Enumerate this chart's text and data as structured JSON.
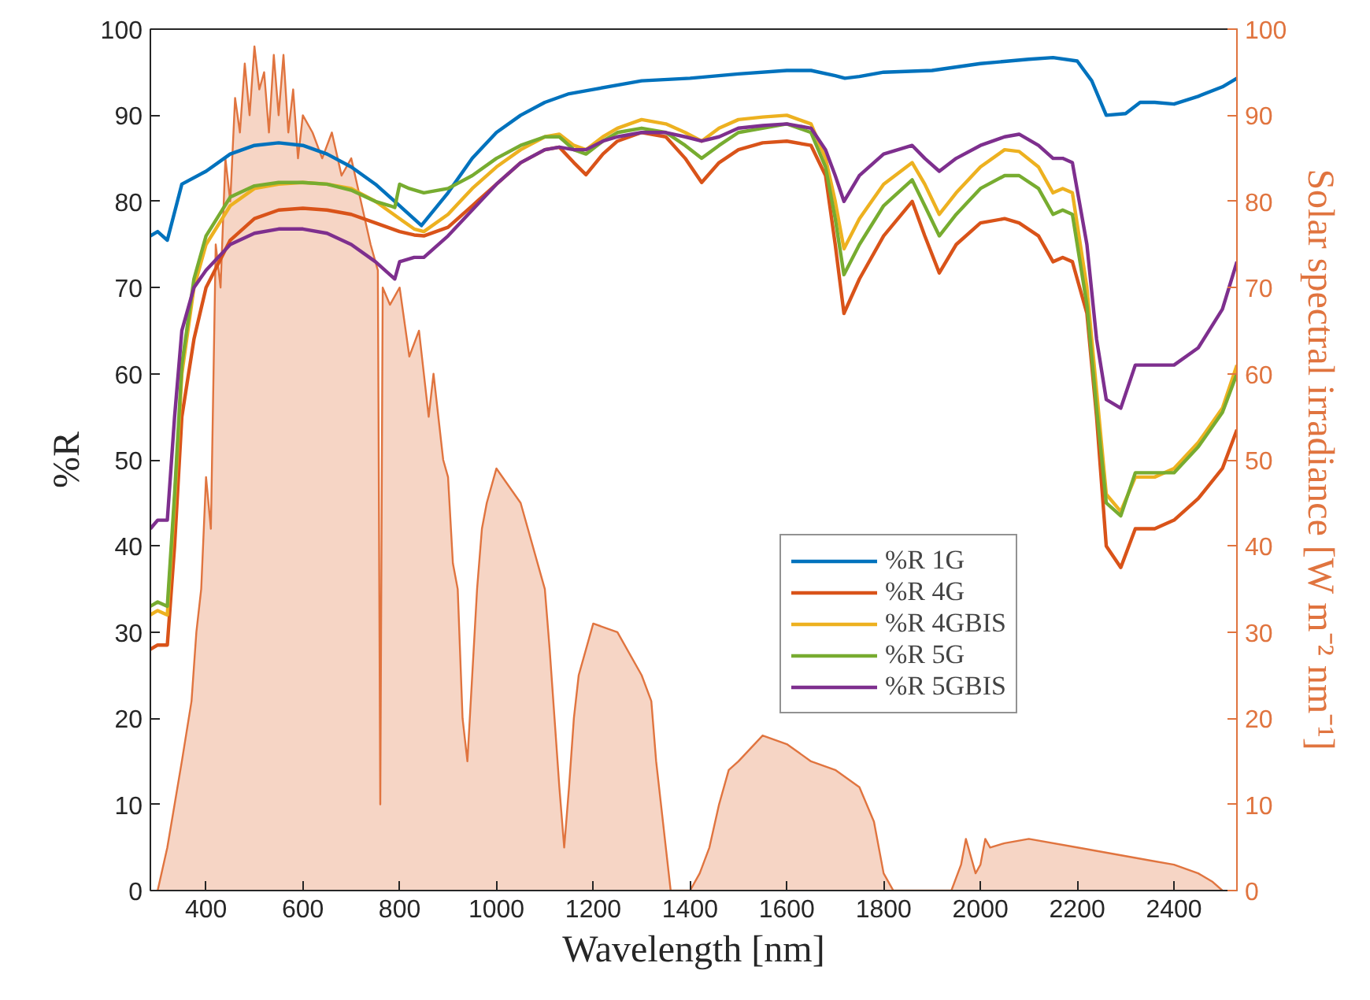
{
  "chart_data": {
    "type": "line",
    "xlabel": "Wavelength [nm]",
    "ylabel": "%R",
    "y2label": "Solar spectral irradiance [W m⁻² nm⁻¹]",
    "xlim": [
      285,
      2530
    ],
    "ylim": [
      0,
      100
    ],
    "y2lim": [
      0,
      100
    ],
    "xticks": [
      400,
      600,
      800,
      1000,
      1200,
      1400,
      1600,
      1800,
      2000,
      2200,
      2400
    ],
    "yticks": [
      0,
      10,
      20,
      30,
      40,
      50,
      60,
      70,
      80,
      90,
      100
    ],
    "y2ticks": [
      0,
      10,
      20,
      30,
      40,
      50,
      60,
      70,
      80,
      90,
      100
    ],
    "legend": "center",
    "series": [
      {
        "type": "area",
        "axis": "y2",
        "color": "#e0743f",
        "x": [
          300,
          320,
          350,
          370,
          380,
          390,
          400,
          410,
          420,
          430,
          440,
          450,
          460,
          470,
          480,
          490,
          500,
          510,
          520,
          530,
          540,
          550,
          560,
          570,
          580,
          590,
          600,
          620,
          640,
          660,
          680,
          700,
          720,
          740,
          755,
          760,
          765,
          780,
          800,
          820,
          840,
          860,
          870,
          890,
          900,
          910,
          920,
          930,
          940,
          950,
          960,
          970,
          980,
          1000,
          1050,
          1100,
          1110,
          1120,
          1130,
          1140,
          1150,
          1160,
          1170,
          1200,
          1250,
          1300,
          1320,
          1330,
          1350,
          1360,
          1400,
          1420,
          1440,
          1460,
          1480,
          1500,
          1550,
          1600,
          1650,
          1700,
          1750,
          1780,
          1800,
          1820,
          1940,
          1960,
          1970,
          1980,
          1990,
          2000,
          2010,
          2020,
          2050,
          2100,
          2200,
          2300,
          2350,
          2400,
          2450,
          2480,
          2500
        ],
        "values": [
          0,
          5,
          15,
          22,
          30,
          35,
          48,
          42,
          75,
          70,
          85,
          80,
          92,
          88,
          96,
          90,
          98,
          93,
          95,
          88,
          97,
          90,
          97,
          88,
          93,
          85,
          90,
          88,
          85,
          88,
          83,
          85,
          80,
          75,
          72,
          10,
          70,
          68,
          70,
          62,
          65,
          55,
          60,
          50,
          48,
          38,
          35,
          20,
          15,
          25,
          35,
          42,
          45,
          49,
          45,
          35,
          28,
          20,
          12,
          5,
          12,
          20,
          25,
          31,
          30,
          25,
          22,
          15,
          5,
          0,
          0,
          2,
          5,
          10,
          14,
          15,
          18,
          17,
          15,
          14,
          12,
          8,
          2,
          0,
          0,
          3,
          6,
          4,
          2,
          3,
          6,
          5,
          5.5,
          6,
          5,
          4,
          3.5,
          3,
          2,
          1,
          0
        ]
      },
      {
        "name": "%R 1G",
        "color": "#0072bd",
        "x": [
          285,
          300,
          320,
          350,
          400,
          450,
          500,
          550,
          600,
          650,
          700,
          750,
          800,
          845,
          900,
          950,
          1000,
          1050,
          1100,
          1150,
          1200,
          1300,
          1400,
          1500,
          1600,
          1650,
          1700,
          1720,
          1750,
          1800,
          1900,
          2000,
          2100,
          2150,
          2200,
          2230,
          2260,
          2300,
          2330,
          2360,
          2400,
          2450,
          2500,
          2530
        ],
        "values": [
          76,
          76.5,
          75.5,
          82,
          83.5,
          85.5,
          86.5,
          86.8,
          86.5,
          85.5,
          84,
          82,
          79.5,
          77.2,
          81,
          85,
          88,
          90,
          91.5,
          92.5,
          93,
          94,
          94.3,
          94.8,
          95.2,
          95.2,
          94.6,
          94.3,
          94.5,
          95,
          95.2,
          96,
          96.5,
          96.7,
          96.3,
          94,
          90,
          90.2,
          91.5,
          91.5,
          91.3,
          92.2,
          93.3,
          94.3
        ]
      },
      {
        "name": "%R 4G",
        "color": "#d95319",
        "x": [
          285,
          300,
          320,
          335,
          350,
          375,
          400,
          450,
          500,
          550,
          600,
          650,
          700,
          750,
          800,
          830,
          850,
          900,
          950,
          1000,
          1050,
          1100,
          1130,
          1160,
          1185,
          1220,
          1250,
          1300,
          1350,
          1390,
          1424,
          1460,
          1500,
          1550,
          1600,
          1650,
          1680,
          1700,
          1718,
          1750,
          1800,
          1859,
          1885,
          1915,
          1950,
          2000,
          2050,
          2080,
          2120,
          2150,
          2170,
          2190,
          2220,
          2240,
          2260,
          2290,
          2320,
          2360,
          2400,
          2450,
          2500,
          2530
        ],
        "values": [
          28,
          28.5,
          28.5,
          40,
          55,
          64,
          70,
          75.5,
          78,
          79,
          79.2,
          79,
          78.5,
          77.5,
          76.5,
          76.1,
          76,
          77,
          79.5,
          82,
          84.5,
          86,
          86.3,
          84.5,
          83.1,
          85.5,
          87,
          88,
          87.5,
          85,
          82.2,
          84.5,
          86,
          86.8,
          87,
          86.5,
          83,
          75,
          67,
          71,
          76,
          80,
          76,
          71.7,
          75,
          77.5,
          78,
          77.5,
          76,
          73,
          73.5,
          73,
          67,
          55,
          40,
          37.5,
          42,
          42,
          43,
          45.5,
          49,
          53.5
        ]
      },
      {
        "name": "%R 4GBIS",
        "color": "#edb120",
        "x": [
          285,
          300,
          320,
          335,
          350,
          375,
          400,
          450,
          500,
          550,
          600,
          650,
          700,
          750,
          800,
          830,
          850,
          900,
          950,
          1000,
          1050,
          1100,
          1130,
          1160,
          1185,
          1220,
          1250,
          1300,
          1350,
          1390,
          1424,
          1460,
          1500,
          1550,
          1600,
          1650,
          1680,
          1700,
          1718,
          1750,
          1800,
          1859,
          1885,
          1915,
          1950,
          2000,
          2050,
          2080,
          2120,
          2150,
          2170,
          2190,
          2220,
          2240,
          2260,
          2290,
          2320,
          2360,
          2400,
          2450,
          2500,
          2530
        ],
        "values": [
          32,
          32.5,
          32,
          45,
          60,
          70,
          75,
          79.5,
          81.5,
          82,
          82.2,
          82,
          81.5,
          80,
          78,
          76.8,
          76.5,
          78.5,
          81.5,
          84,
          86,
          87.5,
          87.8,
          86.5,
          86,
          87.5,
          88.5,
          89.5,
          89,
          88,
          87,
          88.5,
          89.5,
          89.8,
          90,
          89,
          85,
          80,
          74.5,
          78,
          82,
          84.5,
          82,
          78.5,
          81,
          84,
          86,
          85.8,
          84,
          81,
          81.5,
          81,
          70,
          58,
          46,
          44,
          48,
          48,
          49,
          52,
          56,
          61
        ]
      },
      {
        "name": "%R 5G",
        "color": "#77ac30",
        "x": [
          285,
          300,
          320,
          335,
          350,
          375,
          400,
          450,
          500,
          550,
          600,
          650,
          700,
          750,
          780,
          790,
          800,
          820,
          850,
          900,
          950,
          1000,
          1050,
          1100,
          1130,
          1160,
          1185,
          1220,
          1250,
          1300,
          1350,
          1390,
          1424,
          1460,
          1500,
          1550,
          1600,
          1650,
          1680,
          1700,
          1718,
          1750,
          1800,
          1859,
          1885,
          1915,
          1950,
          2000,
          2050,
          2080,
          2120,
          2150,
          2170,
          2190,
          2220,
          2240,
          2260,
          2290,
          2320,
          2360,
          2400,
          2450,
          2500,
          2530
        ],
        "values": [
          33,
          33.5,
          33,
          46,
          61,
          71,
          76,
          80.5,
          81.8,
          82.2,
          82.2,
          82,
          81.3,
          80,
          79.5,
          79.3,
          82,
          81.5,
          81,
          81.5,
          83,
          85,
          86.5,
          87.5,
          87.5,
          86,
          85.5,
          87,
          88,
          88.5,
          88,
          86.5,
          85,
          86.5,
          88,
          88.5,
          89,
          88,
          84,
          78,
          71.5,
          75,
          79.5,
          82.5,
          79.5,
          76,
          78.5,
          81.5,
          83,
          83,
          81.5,
          78.5,
          79,
          78.5,
          68,
          56,
          45,
          43.5,
          48.5,
          48.5,
          48.5,
          51.5,
          55.5,
          60
        ]
      },
      {
        "name": "%R 5GBIS",
        "color": "#7e2f8e",
        "x": [
          285,
          300,
          320,
          335,
          350,
          375,
          400,
          450,
          500,
          550,
          600,
          650,
          700,
          750,
          780,
          790,
          800,
          830,
          850,
          900,
          950,
          1000,
          1050,
          1100,
          1130,
          1160,
          1185,
          1220,
          1250,
          1300,
          1350,
          1390,
          1424,
          1460,
          1500,
          1550,
          1600,
          1650,
          1680,
          1700,
          1718,
          1750,
          1800,
          1859,
          1885,
          1915,
          1950,
          2000,
          2050,
          2080,
          2120,
          2150,
          2170,
          2190,
          2220,
          2240,
          2260,
          2290,
          2320,
          2360,
          2400,
          2450,
          2500,
          2530
        ],
        "values": [
          42,
          43,
          43,
          55,
          65,
          70,
          72,
          75,
          76.3,
          76.8,
          76.8,
          76.3,
          75,
          73,
          71.5,
          71,
          73,
          73.5,
          73.5,
          76,
          79,
          82,
          84.5,
          86,
          86.3,
          86,
          86,
          87,
          87.5,
          88,
          88,
          87.5,
          87,
          87.5,
          88.5,
          88.8,
          89,
          88.5,
          86,
          83,
          80,
          83,
          85.5,
          86.5,
          85,
          83.5,
          85,
          86.5,
          87.5,
          87.8,
          86.5,
          85,
          85,
          84.5,
          75,
          64,
          57,
          56,
          61,
          61,
          61,
          63,
          67.5,
          73
        ]
      }
    ]
  }
}
